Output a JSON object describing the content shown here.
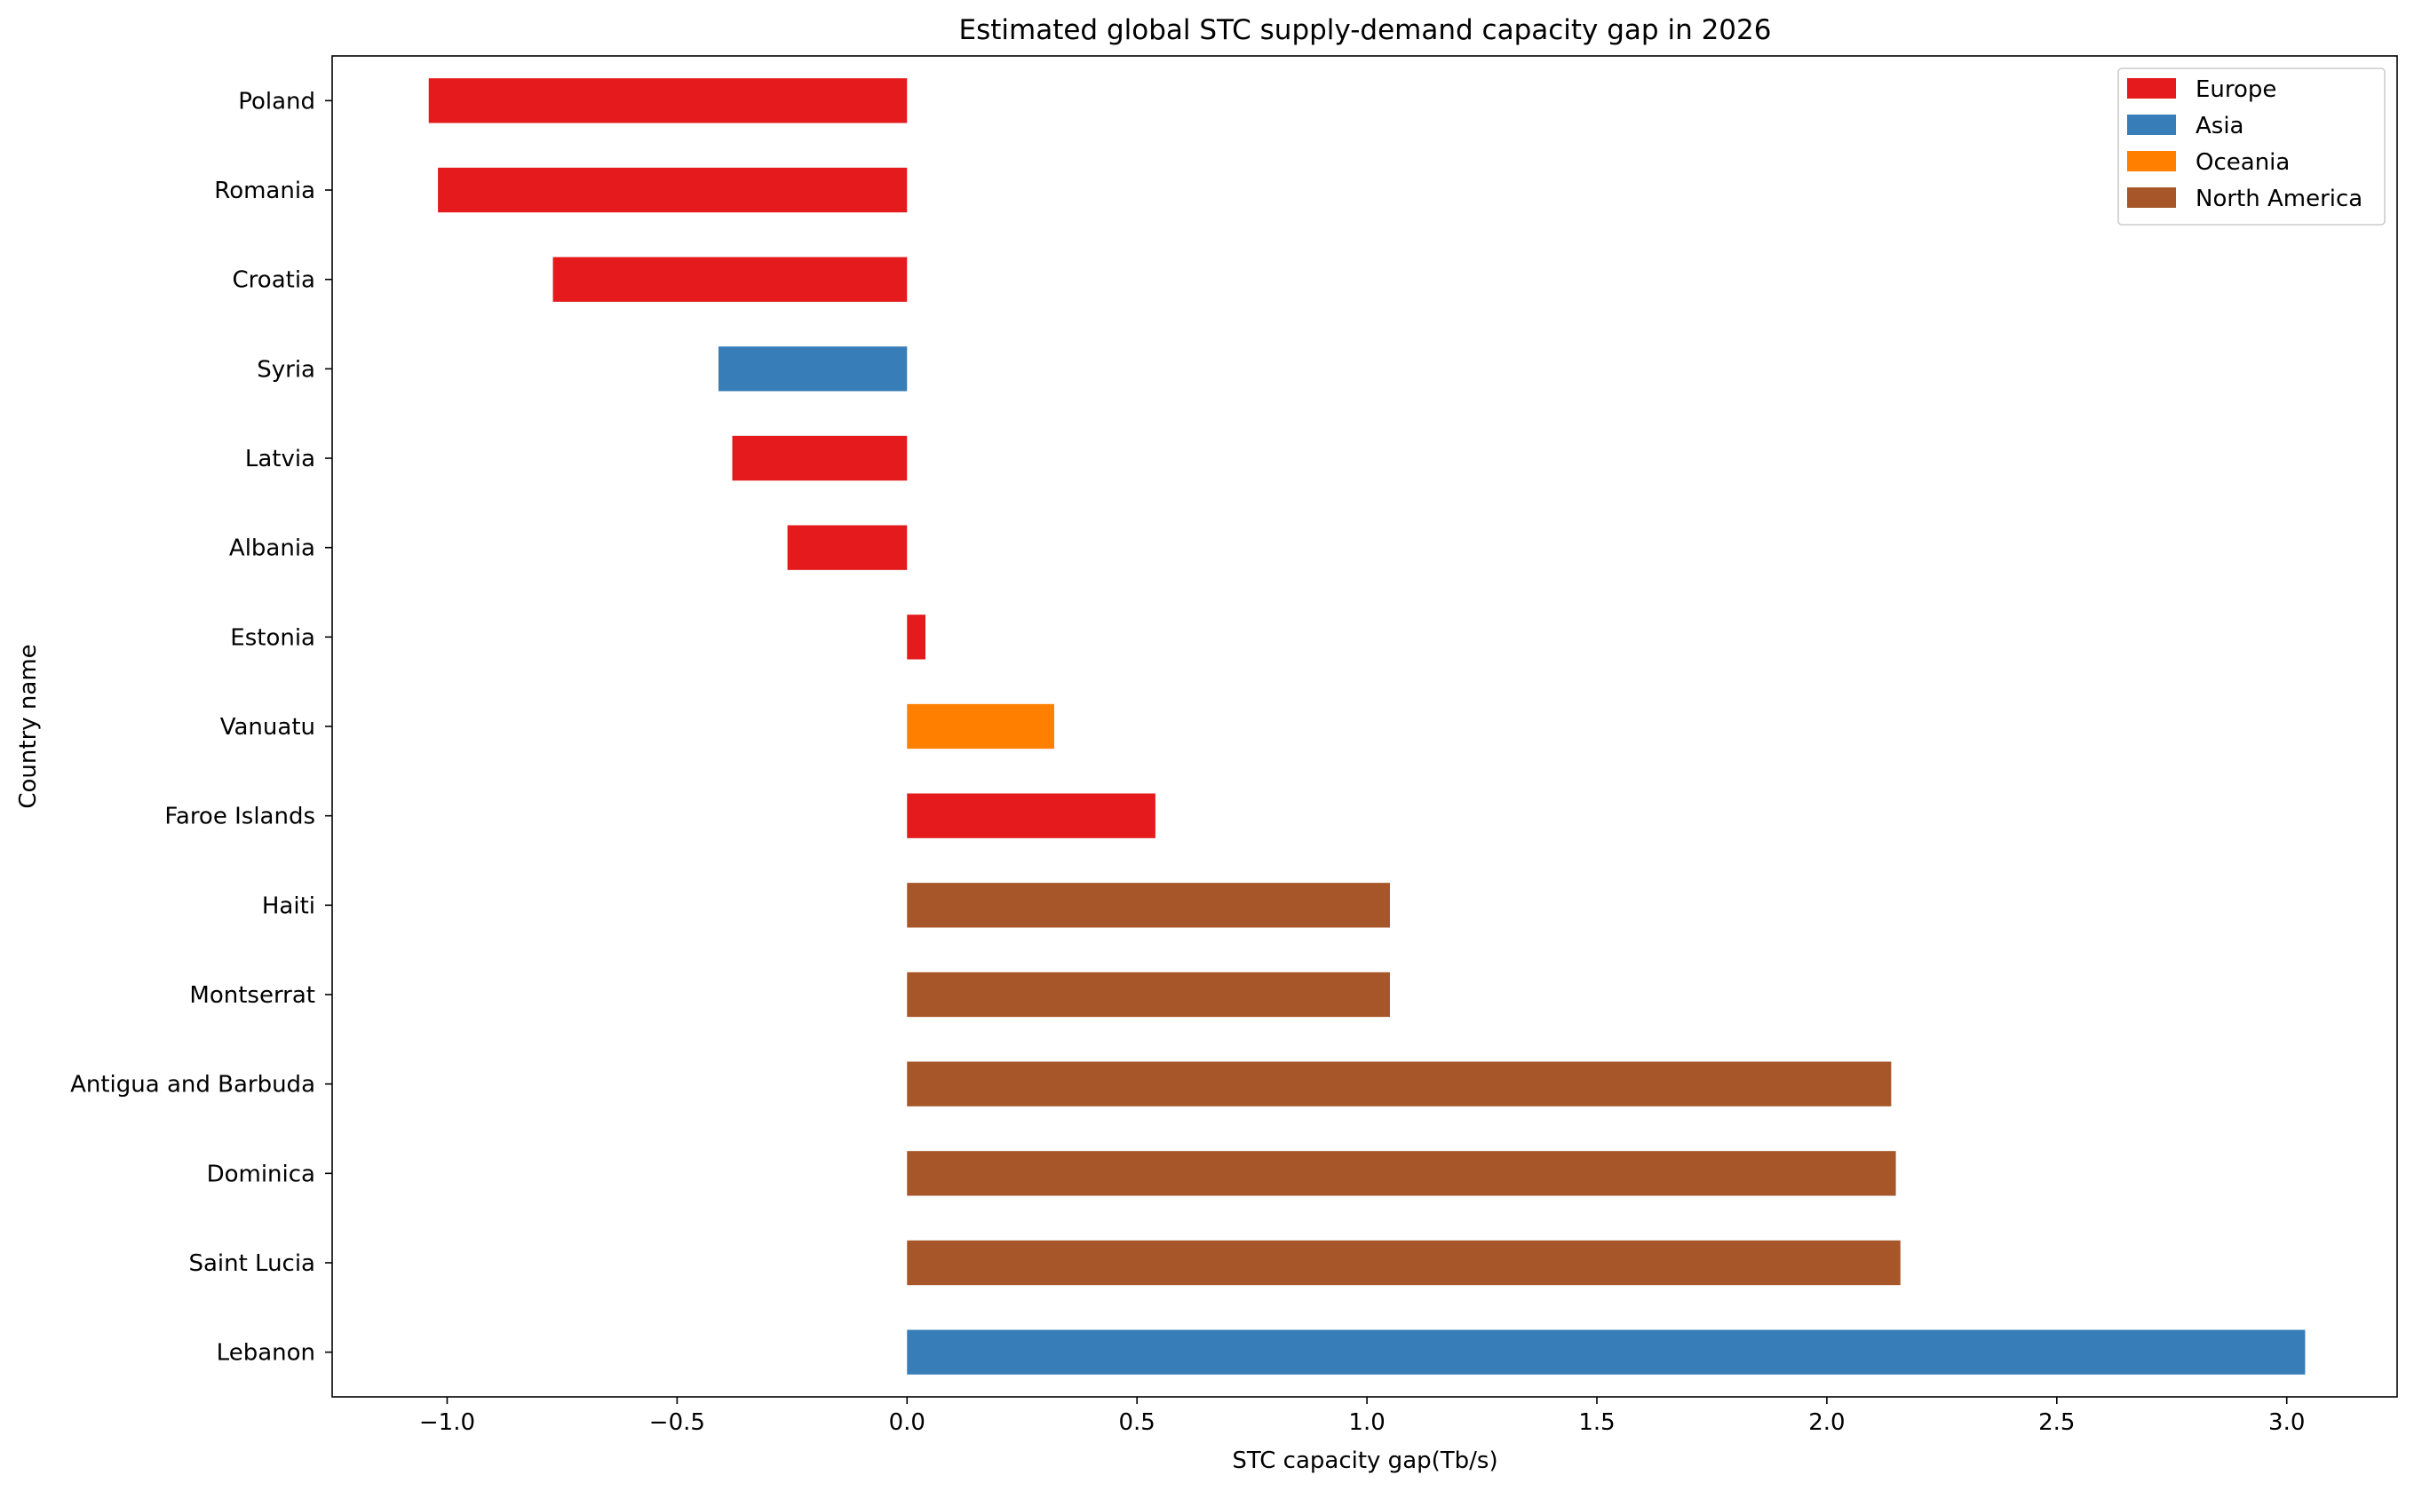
{
  "chart_data": {
    "type": "bar",
    "orientation": "horizontal",
    "title": "Estimated global STC supply-demand capacity gap in 2026",
    "xlabel": "STC capacity gap(Tb/s)",
    "ylabel": "Country name",
    "xlim": [
      -1.25,
      3.24
    ],
    "xticks": [
      -1.0,
      -0.5,
      0.0,
      0.5,
      1.0,
      1.5,
      2.0,
      2.5,
      3.0
    ],
    "xtick_labels": [
      "−1.0",
      "−0.5",
      "0.0",
      "0.5",
      "1.0",
      "1.5",
      "2.0",
      "2.5",
      "3.0"
    ],
    "grid": false,
    "legend_position": "top-right",
    "categories": [
      "Poland",
      "Romania",
      "Croatia",
      "Syria",
      "Latvia",
      "Albania",
      "Estonia",
      "Vanuatu",
      "Faroe Islands",
      "Haiti",
      "Montserrat",
      "Antigua and Barbuda",
      "Dominica",
      "Saint Lucia",
      "Lebanon"
    ],
    "values": [
      -1.04,
      -1.02,
      -0.77,
      -0.41,
      -0.38,
      -0.26,
      0.04,
      0.32,
      0.54,
      1.05,
      1.05,
      2.14,
      2.15,
      2.16,
      3.04
    ],
    "regions": [
      "Europe",
      "Europe",
      "Europe",
      "Asia",
      "Europe",
      "Europe",
      "Europe",
      "Oceania",
      "Europe",
      "North America",
      "North America",
      "North America",
      "North America",
      "North America",
      "Asia"
    ],
    "legend": [
      {
        "name": "Europe",
        "color": "#e41a1c"
      },
      {
        "name": "Asia",
        "color": "#377eb8"
      },
      {
        "name": "Oceania",
        "color": "#ff7f00"
      },
      {
        "name": "North America",
        "color": "#a65628"
      }
    ]
  }
}
